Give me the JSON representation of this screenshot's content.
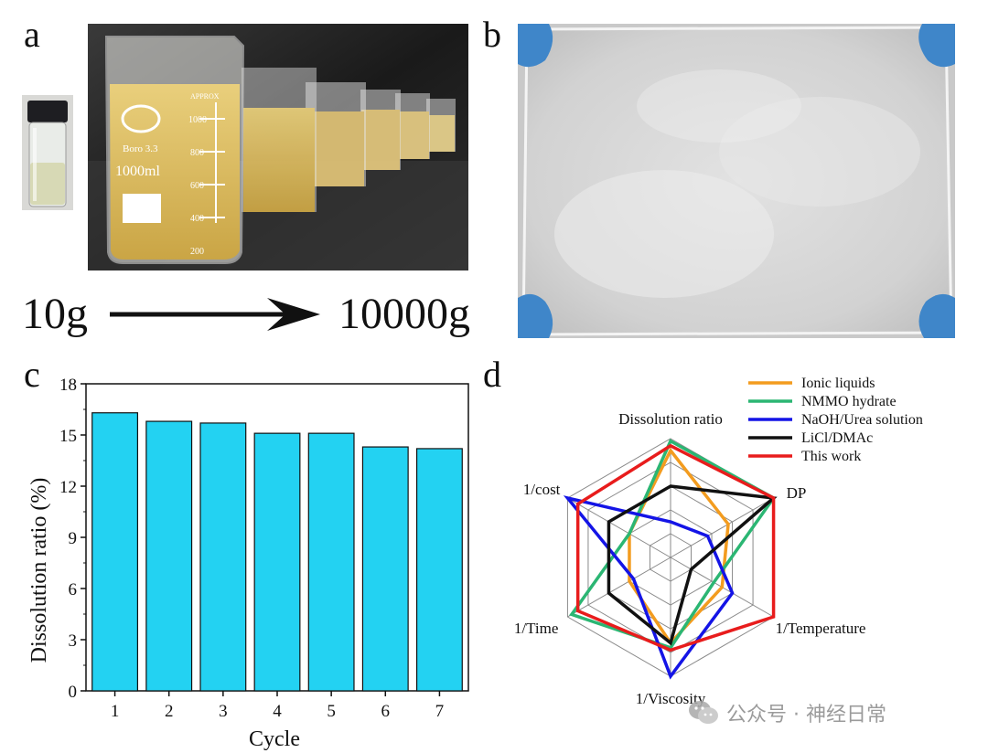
{
  "panels": {
    "a": "a",
    "b": "b",
    "c": "c",
    "d": "d"
  },
  "photo_a": {
    "start_label": "10g",
    "end_label": "10000g",
    "beaker_texts": {
      "volume": "1000ml",
      "glass": "Boro 3.3",
      "approx": "APPROX"
    },
    "graduations": [
      "1000",
      "800",
      "600",
      "400",
      "200"
    ]
  },
  "watermark": {
    "text": "公众号 · 神经日常"
  },
  "chart_data": [
    {
      "type": "bar",
      "categories": [
        "1",
        "2",
        "3",
        "4",
        "5",
        "6",
        "7"
      ],
      "values": [
        16.3,
        15.8,
        15.7,
        15.1,
        15.1,
        14.3,
        14.2
      ],
      "xlabel": "Cycle",
      "ylabel": "Dissolution ratio (%)",
      "ylim": [
        0,
        18
      ],
      "yticks": [
        "0",
        "3",
        "6",
        "9",
        "12",
        "15",
        "18"
      ],
      "bar_color": "#23d2f2",
      "grid": false
    },
    {
      "type": "radar",
      "axes": [
        "Dissolution ratio",
        "DP",
        "1/Temperature",
        "1/Viscosity",
        "1/Time",
        "1/cost"
      ],
      "rmax": 5,
      "grid_levels": 5,
      "legend_position": "top-right",
      "series": [
        {
          "name": "Ionic liquids",
          "color": "#f39c1f",
          "values": [
            4.5,
            2.8,
            2.5,
            3.6,
            2.0,
            2.0
          ]
        },
        {
          "name": "NMMO hydrate",
          "color": "#2bb673",
          "values": [
            4.9,
            5.0,
            2.1,
            3.8,
            4.8,
            2.0
          ]
        },
        {
          "name": "NaOH/Urea solution",
          "color": "#1414e6",
          "values": [
            1.5,
            1.8,
            3.0,
            5.0,
            1.8,
            5.0
          ]
        },
        {
          "name": "LiCl/DMAc",
          "color": "#111111",
          "values": [
            3.0,
            5.0,
            1.0,
            3.6,
            3.0,
            3.0
          ]
        },
        {
          "name": "This work",
          "color": "#e81c1c",
          "values": [
            4.7,
            5.0,
            5.0,
            3.9,
            4.5,
            4.5
          ]
        }
      ]
    }
  ]
}
